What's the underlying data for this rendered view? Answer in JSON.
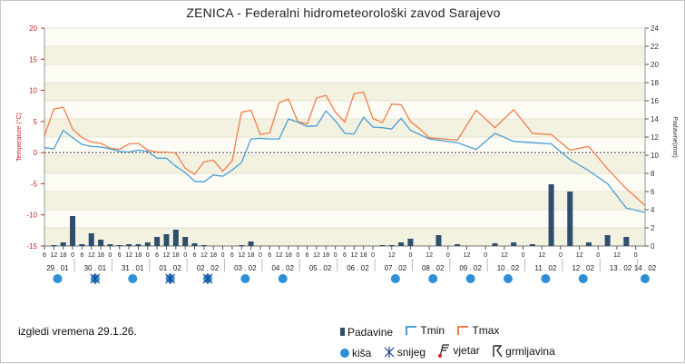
{
  "title": "ZENICA - Federalni hidrometeorološki zavod Sarajevo",
  "outlook": "izgledi vremena 29.1.26.",
  "legend": {
    "bars": "Padavine",
    "tmin": "Tmin",
    "tmax": "Tmax",
    "rain": "kiša",
    "snow": "snijeg",
    "wind": "vjetar",
    "thunder": "grmljavina"
  },
  "colors": {
    "tmin": "#4a9fd8",
    "tmax": "#f07e4e",
    "bars": "#2e4e6e",
    "rain": "#2f8fd6",
    "snow": "#1f3f8f",
    "axis_left": "#cc2222",
    "axis_right": "#333333"
  },
  "icons": {
    "rain": "rain-dot-icon",
    "snow": "snowflake-icon",
    "wind": "wind-flag-icon",
    "thunder": "thunder-icon"
  },
  "chart_data": {
    "type": "line",
    "ylabel": "Temperature (°C)",
    "y2label": "Padavine(mm)",
    "ylim": [
      -15,
      20
    ],
    "y2lim": [
      0,
      24
    ],
    "yticks": [
      -15,
      -10,
      -5,
      0,
      5,
      10,
      15,
      20
    ],
    "y2ticks": [
      0,
      2,
      4,
      6,
      8,
      10,
      12,
      14,
      16,
      18,
      20,
      22,
      24
    ],
    "xlim": [
      0,
      16
    ],
    "hour_ticks": [
      {
        "x": 0,
        "l": "6"
      },
      {
        "x": 0.25,
        "l": "12"
      },
      {
        "x": 0.5,
        "l": "18"
      },
      {
        "x": 0.75,
        "l": "0"
      },
      {
        "x": 1,
        "l": "6"
      },
      {
        "x": 1.25,
        "l": "12"
      },
      {
        "x": 1.5,
        "l": "18"
      },
      {
        "x": 1.75,
        "l": "0"
      },
      {
        "x": 2,
        "l": "6"
      },
      {
        "x": 2.25,
        "l": "12"
      },
      {
        "x": 2.5,
        "l": "18"
      },
      {
        "x": 2.75,
        "l": "0"
      },
      {
        "x": 3,
        "l": "6"
      },
      {
        "x": 3.25,
        "l": "12"
      },
      {
        "x": 3.5,
        "l": "18"
      },
      {
        "x": 3.75,
        "l": "0"
      },
      {
        "x": 4,
        "l": "6"
      },
      {
        "x": 4.25,
        "l": "12"
      },
      {
        "x": 4.5,
        "l": "18"
      },
      {
        "x": 4.75,
        "l": "0"
      },
      {
        "x": 5,
        "l": "6"
      },
      {
        "x": 5.25,
        "l": "12"
      },
      {
        "x": 5.5,
        "l": "18"
      },
      {
        "x": 5.75,
        "l": "0"
      },
      {
        "x": 6,
        "l": "6"
      },
      {
        "x": 6.25,
        "l": "12"
      },
      {
        "x": 6.5,
        "l": "18"
      },
      {
        "x": 6.75,
        "l": "0"
      },
      {
        "x": 7,
        "l": "6"
      },
      {
        "x": 7.25,
        "l": "12"
      },
      {
        "x": 7.5,
        "l": "18"
      },
      {
        "x": 7.75,
        "l": "0"
      },
      {
        "x": 8,
        "l": "6"
      },
      {
        "x": 8.25,
        "l": "12"
      },
      {
        "x": 8.5,
        "l": "18"
      },
      {
        "x": 8.75,
        "l": "0"
      },
      {
        "x": 9.25,
        "l": "12"
      },
      {
        "x": 9.75,
        "l": "0"
      },
      {
        "x": 10.25,
        "l": "12"
      },
      {
        "x": 10.75,
        "l": "0"
      },
      {
        "x": 11.25,
        "l": "12"
      },
      {
        "x": 11.75,
        "l": "0"
      },
      {
        "x": 12.25,
        "l": "12"
      },
      {
        "x": 12.75,
        "l": "0"
      },
      {
        "x": 13.25,
        "l": "12"
      },
      {
        "x": 13.75,
        "l": "0"
      },
      {
        "x": 14.25,
        "l": "12"
      },
      {
        "x": 14.75,
        "l": "0"
      },
      {
        "x": 15.25,
        "l": "12"
      },
      {
        "x": 15.75,
        "l": "0"
      }
    ],
    "date_labels": [
      {
        "x": 0.35,
        "l": "29 . 01"
      },
      {
        "x": 1.35,
        "l": "30 . 01"
      },
      {
        "x": 2.35,
        "l": "31 . 01"
      },
      {
        "x": 3.35,
        "l": "01 . 02"
      },
      {
        "x": 4.35,
        "l": "02 . 02"
      },
      {
        "x": 5.35,
        "l": "03 . 02"
      },
      {
        "x": 6.35,
        "l": "04 . 02"
      },
      {
        "x": 7.35,
        "l": "05 . 02"
      },
      {
        "x": 8.35,
        "l": "06 . 02"
      },
      {
        "x": 9.35,
        "l": "07 . 02"
      },
      {
        "x": 10.35,
        "l": "08 . 02"
      },
      {
        "x": 11.35,
        "l": "09 . 02"
      },
      {
        "x": 12.35,
        "l": "10 . 02"
      },
      {
        "x": 13.35,
        "l": "11 . 02"
      },
      {
        "x": 14.35,
        "l": "12 . 02"
      },
      {
        "x": 15.35,
        "l": "13 . 02"
      },
      {
        "x": 16,
        "l": "14 . 02"
      }
    ],
    "series": [
      {
        "name": "Tmax",
        "points": [
          [
            0,
            2.7
          ],
          [
            0.25,
            7
          ],
          [
            0.5,
            7.3
          ],
          [
            0.75,
            3.8
          ],
          [
            1,
            2.4
          ],
          [
            1.25,
            1.7
          ],
          [
            1.5,
            1.5
          ],
          [
            1.75,
            0.7
          ],
          [
            2,
            0.5
          ],
          [
            2.25,
            1.4
          ],
          [
            2.5,
            1.5
          ],
          [
            2.75,
            0.4
          ],
          [
            3,
            0.1
          ],
          [
            3.25,
            0.1
          ],
          [
            3.5,
            -0.1
          ],
          [
            3.75,
            -2.5
          ],
          [
            4,
            -3.5
          ],
          [
            4.25,
            -1.5
          ],
          [
            4.5,
            -1.2
          ],
          [
            4.75,
            -3
          ],
          [
            5,
            -1.3
          ],
          [
            5.25,
            6.5
          ],
          [
            5.5,
            6.8
          ],
          [
            5.75,
            2.9
          ],
          [
            6,
            3.2
          ],
          [
            6.25,
            8
          ],
          [
            6.5,
            8.6
          ],
          [
            6.75,
            5
          ],
          [
            7,
            4.6
          ],
          [
            7.25,
            8.8
          ],
          [
            7.5,
            9.2
          ],
          [
            7.75,
            6.5
          ],
          [
            8,
            4.9
          ],
          [
            8.25,
            9.5
          ],
          [
            8.5,
            9.7
          ],
          [
            8.75,
            5.5
          ],
          [
            9,
            4.8
          ],
          [
            9.25,
            7.8
          ],
          [
            9.5,
            7.7
          ],
          [
            9.75,
            5
          ],
          [
            10,
            3.8
          ],
          [
            10.25,
            2.4
          ],
          [
            11,
            2
          ],
          [
            11.5,
            6.8
          ],
          [
            12,
            4
          ],
          [
            12.5,
            6.9
          ],
          [
            13,
            3.1
          ],
          [
            13.5,
            2.9
          ],
          [
            14,
            0.4
          ],
          [
            14.5,
            1
          ],
          [
            15,
            -2.6
          ],
          [
            15.5,
            -5.8
          ],
          [
            16,
            -8.5
          ]
        ]
      },
      {
        "name": "Tmin",
        "points": [
          [
            0,
            0.8
          ],
          [
            0.25,
            0.6
          ],
          [
            0.5,
            3.6
          ],
          [
            0.75,
            2.4
          ],
          [
            1,
            1.3
          ],
          [
            1.25,
            1
          ],
          [
            1.5,
            0.9
          ],
          [
            1.75,
            0.6
          ],
          [
            2,
            0.2
          ],
          [
            2.25,
            0.1
          ],
          [
            2.5,
            0.4
          ],
          [
            2.75,
            0.2
          ],
          [
            3,
            -0.9
          ],
          [
            3.25,
            -0.9
          ],
          [
            3.5,
            -2.2
          ],
          [
            3.75,
            -3.2
          ],
          [
            4,
            -4.6
          ],
          [
            4.25,
            -4.7
          ],
          [
            4.5,
            -3.6
          ],
          [
            4.75,
            -3.8
          ],
          [
            5,
            -2.8
          ],
          [
            5.25,
            -1.6
          ],
          [
            5.5,
            2.2
          ],
          [
            5.75,
            2.3
          ],
          [
            6,
            2.2
          ],
          [
            6.25,
            2.2
          ],
          [
            6.5,
            5.4
          ],
          [
            6.75,
            4.9
          ],
          [
            7,
            4.2
          ],
          [
            7.25,
            4.3
          ],
          [
            7.5,
            6.7
          ],
          [
            7.75,
            5.1
          ],
          [
            8,
            3.1
          ],
          [
            8.25,
            3
          ],
          [
            8.5,
            5.7
          ],
          [
            8.75,
            4.1
          ],
          [
            9,
            4
          ],
          [
            9.25,
            3.8
          ],
          [
            9.5,
            5.5
          ],
          [
            9.75,
            3.6
          ],
          [
            10,
            2.9
          ],
          [
            10.25,
            2.2
          ],
          [
            11,
            1.6
          ],
          [
            11.5,
            0.5
          ],
          [
            12,
            3.1
          ],
          [
            12.5,
            1.8
          ],
          [
            13,
            1.6
          ],
          [
            13.5,
            1.4
          ],
          [
            14,
            -1.1
          ],
          [
            14.5,
            -2.9
          ],
          [
            15,
            -5
          ],
          [
            15.5,
            -8.9
          ],
          [
            16,
            -9.6
          ]
        ]
      }
    ],
    "padavine": [
      [
        0.25,
        0.1
      ],
      [
        0.5,
        0.4
      ],
      [
        0.75,
        3.3
      ],
      [
        1,
        0.2
      ],
      [
        1.25,
        1.4
      ],
      [
        1.5,
        0.7
      ],
      [
        1.75,
        0.2
      ],
      [
        2,
        0.1
      ],
      [
        2.25,
        0.2
      ],
      [
        2.5,
        0.2
      ],
      [
        2.75,
        0.4
      ],
      [
        3,
        1
      ],
      [
        3.25,
        1.3
      ],
      [
        3.5,
        1.8
      ],
      [
        3.75,
        1
      ],
      [
        4,
        0.3
      ],
      [
        4.25,
        0.1
      ],
      [
        5.25,
        0.1
      ],
      [
        5.5,
        0.5
      ],
      [
        9,
        0.1
      ],
      [
        9.25,
        0.1
      ],
      [
        9.5,
        0.4
      ],
      [
        9.75,
        0.8
      ],
      [
        10.5,
        1.2
      ],
      [
        11,
        0.2
      ],
      [
        12,
        0.3
      ],
      [
        12.5,
        0.4
      ],
      [
        13,
        0.2
      ],
      [
        13.5,
        6.8
      ],
      [
        14,
        6
      ],
      [
        14.5,
        0.4
      ],
      [
        15,
        1.2
      ],
      [
        15.5,
        1
      ]
    ],
    "weather_icons": [
      {
        "x": 0.35,
        "t": "rain"
      },
      {
        "x": 1.35,
        "t": "snow"
      },
      {
        "x": 2.35,
        "t": "rain"
      },
      {
        "x": 3.35,
        "t": "snow"
      },
      {
        "x": 4.35,
        "t": "snow"
      },
      {
        "x": 5.35,
        "t": "rain"
      },
      {
        "x": 6.35,
        "t": "rain"
      },
      {
        "x": 9.35,
        "t": "rain"
      },
      {
        "x": 10.35,
        "t": "rain"
      },
      {
        "x": 11.35,
        "t": "rain"
      },
      {
        "x": 12.35,
        "t": "rain"
      },
      {
        "x": 13.35,
        "t": "rain"
      },
      {
        "x": 14.35,
        "t": "rain"
      },
      {
        "x": 16,
        "t": "rain"
      }
    ],
    "grid": true,
    "legend_position": "bottom"
  }
}
